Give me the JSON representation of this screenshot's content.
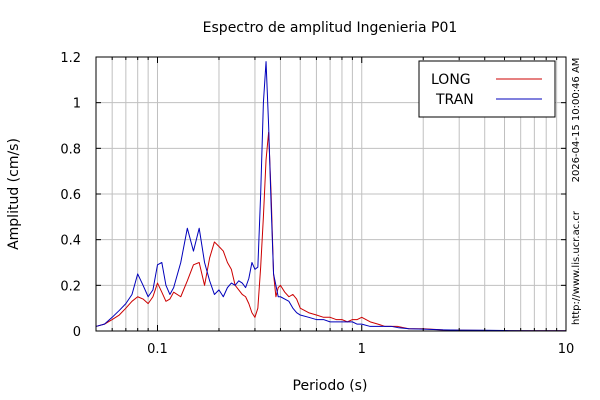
{
  "chart_data": {
    "type": "line",
    "title": "Espectro de amplitud Ingenieria P01",
    "xlabel": "Periodo (s)",
    "ylabel": "Amplitud (cm/s)",
    "xscale": "log",
    "xlim": [
      0.05,
      10
    ],
    "ylim": [
      0,
      1.2
    ],
    "grid": true,
    "legend_position": "top-right",
    "x_ticks": [
      {
        "value": 0.1,
        "label": "0.1"
      },
      {
        "value": 1,
        "label": "1"
      },
      {
        "value": 10,
        "label": "10"
      }
    ],
    "y_ticks": [
      {
        "value": 0,
        "label": "0"
      },
      {
        "value": 0.2,
        "label": "0.2"
      },
      {
        "value": 0.4,
        "label": "0.4"
      },
      {
        "value": 0.6,
        "label": "0.6"
      },
      {
        "value": 0.8,
        "label": "0.8"
      },
      {
        "value": 1.0,
        "label": "1"
      },
      {
        "value": 1.2,
        "label": "1.2"
      }
    ],
    "side_texts": [
      "2026-04-15 10:00:46 AM",
      "http://www.lis.ucr.ac.cr"
    ],
    "series": [
      {
        "name": "LONG",
        "color": "#cc0000",
        "x": [
          0.05,
          0.055,
          0.06,
          0.065,
          0.07,
          0.075,
          0.08,
          0.085,
          0.09,
          0.095,
          0.1,
          0.105,
          0.11,
          0.115,
          0.12,
          0.13,
          0.14,
          0.15,
          0.16,
          0.17,
          0.18,
          0.19,
          0.2,
          0.21,
          0.22,
          0.23,
          0.24,
          0.25,
          0.26,
          0.27,
          0.28,
          0.29,
          0.3,
          0.31,
          0.32,
          0.33,
          0.34,
          0.35,
          0.36,
          0.37,
          0.38,
          0.39,
          0.4,
          0.42,
          0.44,
          0.46,
          0.48,
          0.5,
          0.55,
          0.6,
          0.65,
          0.7,
          0.75,
          0.8,
          0.85,
          0.9,
          0.95,
          1.0,
          1.1,
          1.2,
          1.3,
          1.4,
          1.5,
          1.7,
          2.0,
          2.5,
          3.0,
          4.0,
          5.0,
          7.0,
          10.0
        ],
        "values": [
          0.02,
          0.03,
          0.05,
          0.07,
          0.1,
          0.13,
          0.15,
          0.14,
          0.12,
          0.15,
          0.21,
          0.17,
          0.13,
          0.14,
          0.17,
          0.15,
          0.22,
          0.29,
          0.3,
          0.2,
          0.32,
          0.39,
          0.37,
          0.35,
          0.3,
          0.27,
          0.2,
          0.18,
          0.16,
          0.15,
          0.12,
          0.08,
          0.06,
          0.1,
          0.28,
          0.5,
          0.75,
          0.87,
          0.6,
          0.25,
          0.15,
          0.19,
          0.2,
          0.17,
          0.15,
          0.16,
          0.14,
          0.1,
          0.08,
          0.07,
          0.06,
          0.06,
          0.05,
          0.05,
          0.04,
          0.05,
          0.05,
          0.06,
          0.04,
          0.03,
          0.02,
          0.02,
          0.02,
          0.01,
          0.01,
          0.005,
          0.003,
          0.002,
          0.001,
          0.001,
          0.001
        ]
      },
      {
        "name": "TRAN",
        "color": "#0000bb",
        "x": [
          0.05,
          0.055,
          0.06,
          0.065,
          0.07,
          0.075,
          0.08,
          0.085,
          0.09,
          0.095,
          0.1,
          0.105,
          0.11,
          0.115,
          0.12,
          0.13,
          0.14,
          0.15,
          0.16,
          0.17,
          0.18,
          0.19,
          0.2,
          0.21,
          0.22,
          0.23,
          0.24,
          0.25,
          0.26,
          0.27,
          0.28,
          0.29,
          0.3,
          0.31,
          0.32,
          0.33,
          0.34,
          0.35,
          0.36,
          0.37,
          0.38,
          0.39,
          0.4,
          0.42,
          0.44,
          0.46,
          0.48,
          0.5,
          0.55,
          0.6,
          0.65,
          0.7,
          0.75,
          0.8,
          0.85,
          0.9,
          0.95,
          1.0,
          1.1,
          1.2,
          1.3,
          1.4,
          1.5,
          1.7,
          2.0,
          2.5,
          3.0,
          4.0,
          5.0,
          7.0,
          10.0
        ],
        "values": [
          0.02,
          0.03,
          0.06,
          0.09,
          0.12,
          0.16,
          0.25,
          0.2,
          0.15,
          0.18,
          0.29,
          0.3,
          0.2,
          0.16,
          0.19,
          0.3,
          0.45,
          0.35,
          0.45,
          0.3,
          0.22,
          0.16,
          0.18,
          0.15,
          0.19,
          0.21,
          0.2,
          0.22,
          0.21,
          0.19,
          0.23,
          0.3,
          0.27,
          0.28,
          0.6,
          1.0,
          1.18,
          0.9,
          0.55,
          0.25,
          0.2,
          0.15,
          0.15,
          0.14,
          0.13,
          0.1,
          0.08,
          0.07,
          0.06,
          0.05,
          0.05,
          0.04,
          0.04,
          0.04,
          0.04,
          0.04,
          0.03,
          0.03,
          0.02,
          0.02,
          0.02,
          0.02,
          0.015,
          0.01,
          0.008,
          0.005,
          0.004,
          0.003,
          0.002,
          0.001,
          0.001
        ]
      }
    ]
  }
}
